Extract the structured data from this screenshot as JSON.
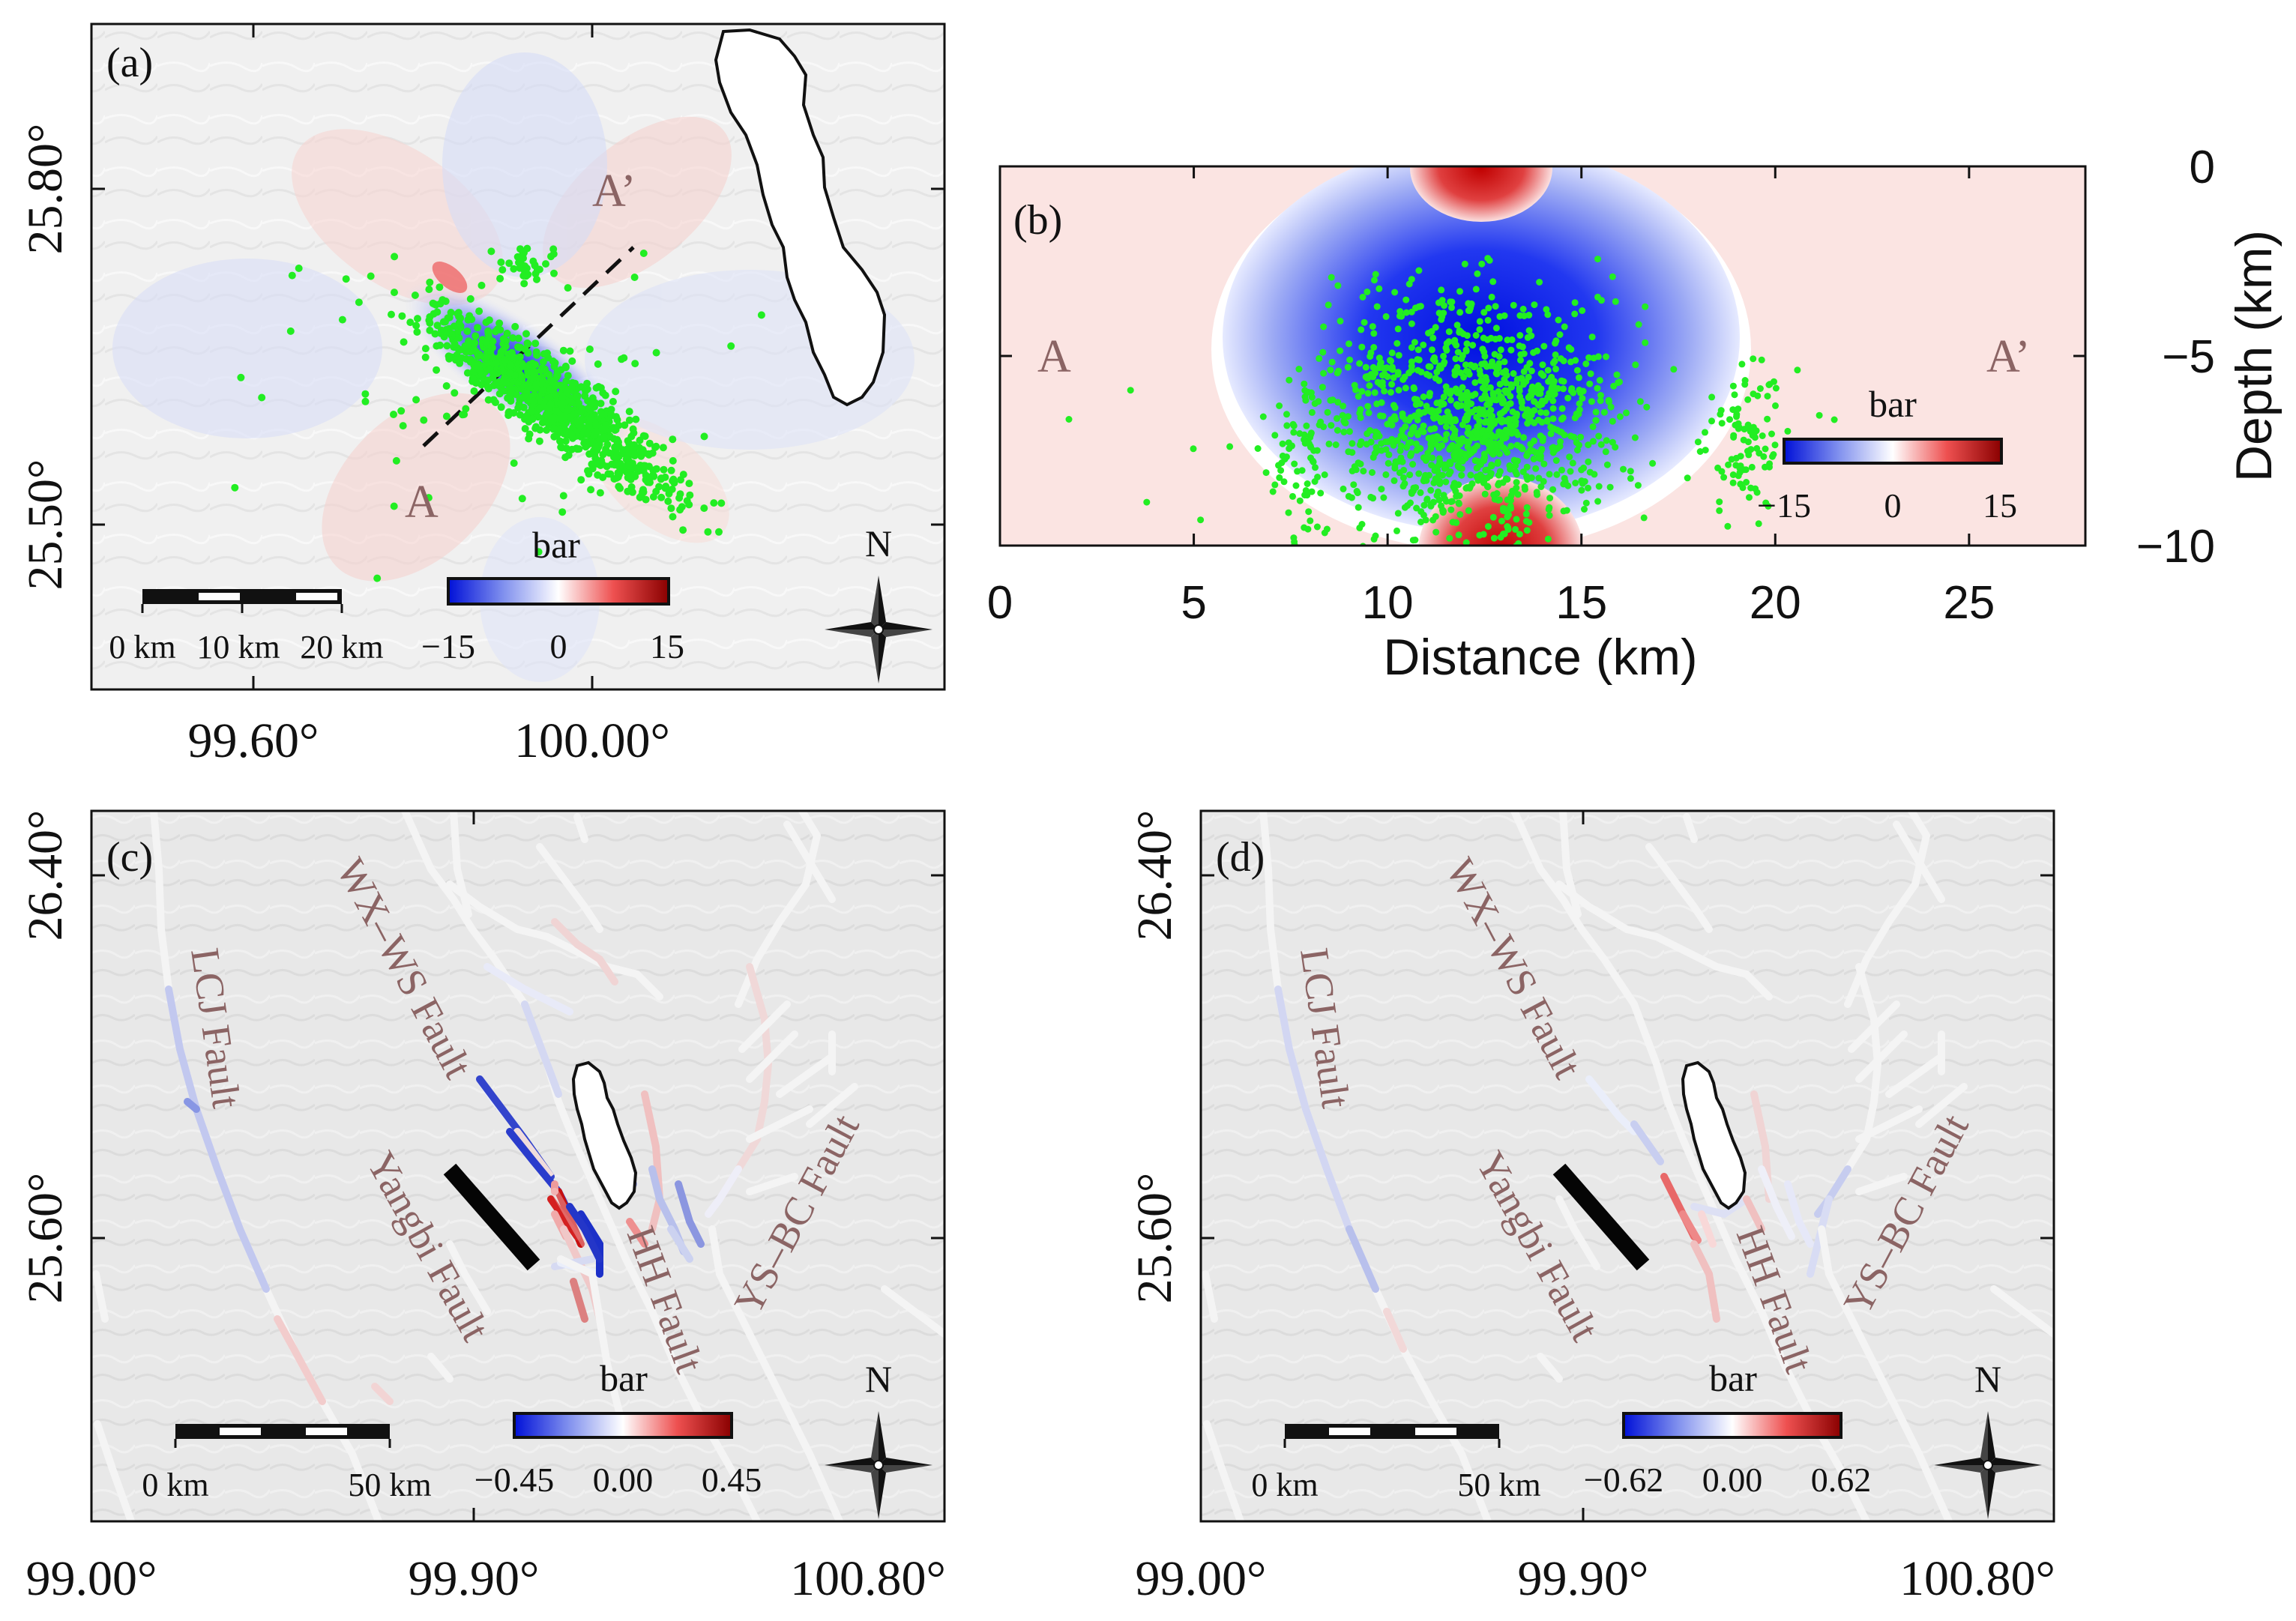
{
  "chart_data": [
    {
      "type": "heatmap",
      "panel_label": "(a)",
      "title": "",
      "x_ticks": [
        "99.60°",
        "100.00°"
      ],
      "y_ticks": [
        "25.80°",
        "25.50°"
      ],
      "profile_labels": [
        "A",
        "A’"
      ],
      "scalebar_labels": [
        "0 km",
        "10 km",
        "20 km"
      ],
      "colorbar": {
        "label": "bar",
        "min": -15,
        "max": 15,
        "ticks": [
          "−15",
          "0",
          "15"
        ],
        "colors": [
          "#0010d8",
          "#ffffff",
          "#9a0000"
        ]
      },
      "north_label": "N",
      "seismicity_color": "#22ee22"
    },
    {
      "type": "heatmap",
      "panel_label": "(b)",
      "xlabel": "Distance (km)",
      "ylabel": "Depth (km)",
      "xlim": [
        0,
        28
      ],
      "ylim": [
        -10,
        0
      ],
      "x_ticks": [
        0,
        5,
        10,
        15,
        20,
        25
      ],
      "y_ticks": [
        0,
        -5,
        -10
      ],
      "y_tick_labels": [
        "0",
        "−5",
        "−10"
      ],
      "end_labels": [
        "A",
        "A’"
      ],
      "colorbar": {
        "label": "bar",
        "min": -15,
        "max": 15,
        "ticks": [
          "−15",
          "0",
          "15"
        ]
      }
    },
    {
      "type": "heatmap",
      "panel_label": "(c)",
      "x_ticks": [
        "99.00°",
        "99.90°",
        "100.80°"
      ],
      "y_ticks": [
        "26.40°",
        "25.60°"
      ],
      "fault_labels": [
        "LCJ Fault",
        "WX–WS Fault",
        "Yangbi Fault",
        "HH Fault",
        "YS–BC Fault"
      ],
      "scalebar_labels": [
        "0 km",
        "50 km"
      ],
      "colorbar": {
        "label": "bar",
        "min": -0.45,
        "max": 0.45,
        "ticks": [
          "−0.45",
          "0.00",
          "0.45"
        ]
      },
      "north_label": "N"
    },
    {
      "type": "heatmap",
      "panel_label": "(d)",
      "x_ticks": [
        "99.00°",
        "99.90°",
        "100.80°"
      ],
      "y_ticks": [
        "26.40°",
        "25.60°"
      ],
      "fault_labels": [
        "LCJ Fault",
        "WX–WS Fault",
        "Yangbi Fault",
        "HH Fault",
        "YS–BC Fault"
      ],
      "scalebar_labels": [
        "0 km",
        "50 km"
      ],
      "colorbar": {
        "label": "bar",
        "min": -0.62,
        "max": 0.62,
        "ticks": [
          "−0.62",
          "0.00",
          "0.62"
        ]
      },
      "north_label": "N"
    }
  ]
}
